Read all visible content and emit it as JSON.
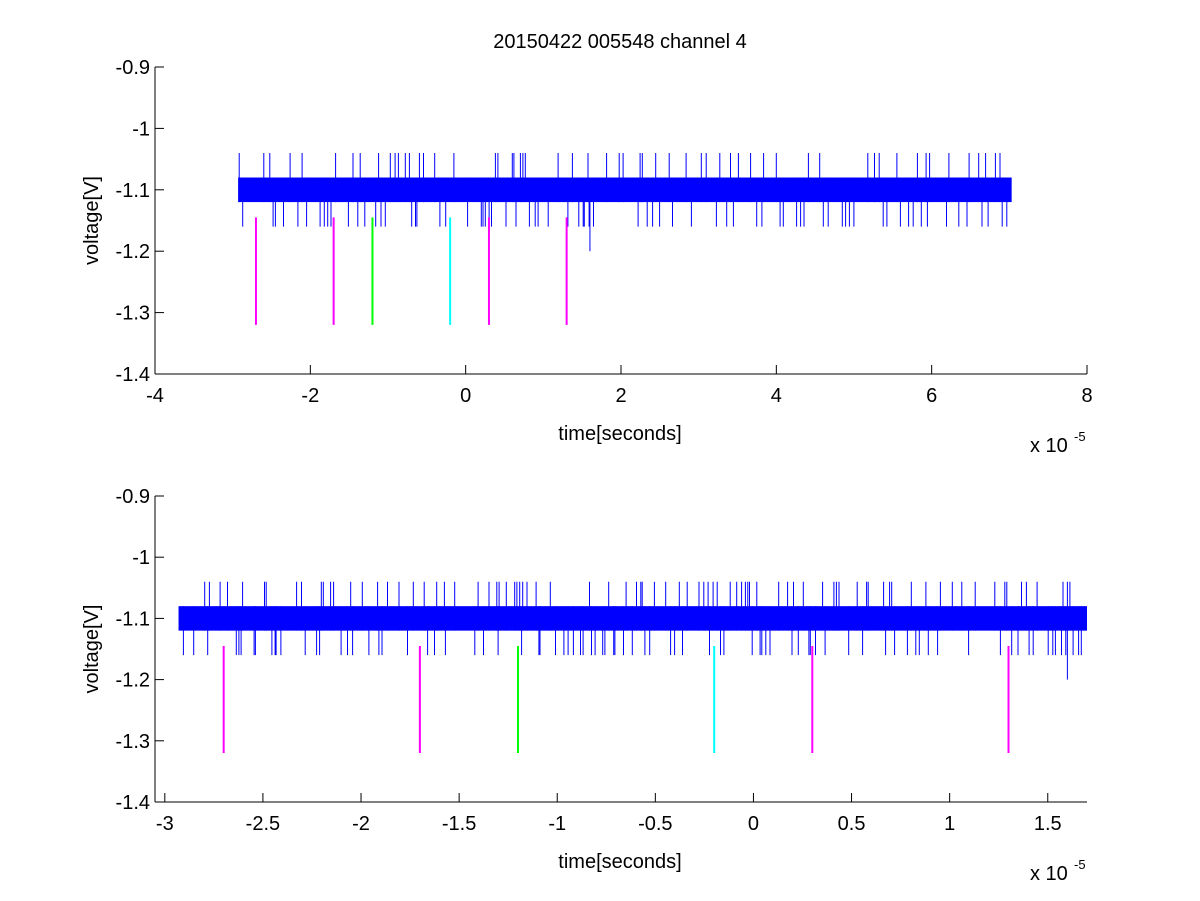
{
  "chart_data": [
    {
      "type": "line",
      "title": "20150422 005548 channel 4",
      "xlabel": "time[seconds]",
      "ylabel": "voltage[V]",
      "x_exponent_label": "x 10",
      "x_exponent": "-5",
      "xlim": [
        -4,
        8
      ],
      "ylim": [
        -1.4,
        -0.9
      ],
      "x_ticks": [
        -4,
        -2,
        0,
        2,
        4,
        6,
        8
      ],
      "x_tick_labels": [
        "-4",
        "-2",
        "0",
        "2",
        "4",
        "6",
        "8"
      ],
      "y_ticks": [
        -1.4,
        -1.3,
        -1.2,
        -1.1,
        -1.0,
        -0.9
      ],
      "y_tick_labels": [
        "-1.4",
        "-1.3",
        "-1.2",
        "-1.1",
        "-1",
        "-0.9"
      ],
      "grid": false,
      "signal": {
        "color": "#0000ff",
        "x_range": [
          -2.93,
          7.03
        ],
        "band": [
          -1.12,
          -1.08
        ],
        "spike_range": [
          -1.16,
          -1.04
        ],
        "min_value": -1.2,
        "min_value_x": 1.6
      },
      "markers": [
        {
          "x": -2.7,
          "y_range": [
            -1.32,
            -1.145
          ],
          "color": "#ff00ff"
        },
        {
          "x": -1.7,
          "y_range": [
            -1.32,
            -1.145
          ],
          "color": "#ff00ff"
        },
        {
          "x": -1.2,
          "y_range": [
            -1.32,
            -1.145
          ],
          "color": "#00ff00"
        },
        {
          "x": -0.2,
          "y_range": [
            -1.32,
            -1.145
          ],
          "color": "#00ffff"
        },
        {
          "x": 0.3,
          "y_range": [
            -1.32,
            -1.145
          ],
          "color": "#ff00ff"
        },
        {
          "x": 1.3,
          "y_range": [
            -1.32,
            -1.145
          ],
          "color": "#ff00ff"
        }
      ]
    },
    {
      "type": "line",
      "xlabel": "time[seconds]",
      "ylabel": "voltage[V]",
      "x_exponent_label": "x 10",
      "x_exponent": "-5",
      "xlim": [
        -3.05,
        1.7
      ],
      "ylim": [
        -1.4,
        -0.9
      ],
      "x_ticks": [
        -3,
        -2.5,
        -2,
        -1.5,
        -1,
        -0.5,
        0,
        0.5,
        1,
        1.5
      ],
      "x_tick_labels": [
        "-3",
        "-2.5",
        "-2",
        "-1.5",
        "-1",
        "-0.5",
        "0",
        "0.5",
        "1",
        "1.5"
      ],
      "y_ticks": [
        -1.4,
        -1.3,
        -1.2,
        -1.1,
        -1.0,
        -0.9
      ],
      "y_tick_labels": [
        "-1.4",
        "-1.3",
        "-1.2",
        "-1.1",
        "-1",
        "-0.9"
      ],
      "grid": false,
      "signal": {
        "color": "#0000ff",
        "x_range": [
          -2.93,
          1.7
        ],
        "band": [
          -1.12,
          -1.08
        ],
        "spike_range": [
          -1.16,
          -1.04
        ],
        "min_value": -1.2,
        "min_value_x": 1.6
      },
      "markers": [
        {
          "x": -2.7,
          "y_range": [
            -1.32,
            -1.145
          ],
          "color": "#ff00ff"
        },
        {
          "x": -1.7,
          "y_range": [
            -1.32,
            -1.145
          ],
          "color": "#ff00ff"
        },
        {
          "x": -1.2,
          "y_range": [
            -1.32,
            -1.145
          ],
          "color": "#00ff00"
        },
        {
          "x": -0.2,
          "y_range": [
            -1.32,
            -1.145
          ],
          "color": "#00ffff"
        },
        {
          "x": 0.3,
          "y_range": [
            -1.32,
            -1.145
          ],
          "color": "#ff00ff"
        },
        {
          "x": 1.3,
          "y_range": [
            -1.32,
            -1.145
          ],
          "color": "#ff00ff"
        }
      ]
    }
  ]
}
